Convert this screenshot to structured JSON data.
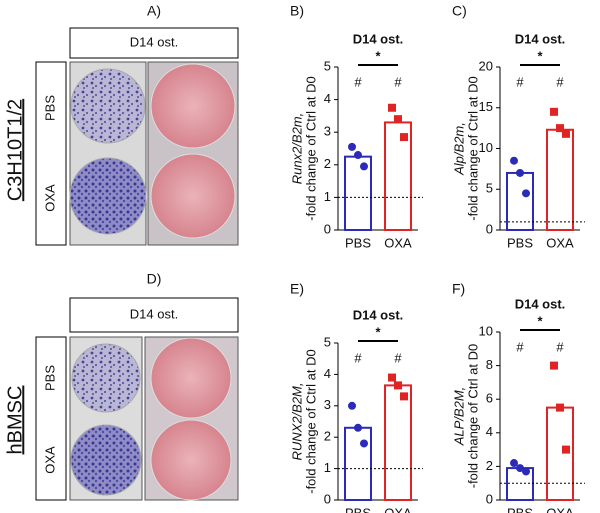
{
  "image_panels": [
    {
      "label": "A)",
      "header": "D14 ost.",
      "row_labels": [
        "PBS",
        "OXA"
      ],
      "side_label": "C3H10T1/2"
    },
    {
      "label": "D)",
      "header": "D14 ost.",
      "row_labels": [
        "PBS",
        "OXA"
      ],
      "side_label": "hBMSC"
    }
  ],
  "chart_data": [
    {
      "type": "bar",
      "label": "B)",
      "title": "D14 ost.",
      "ylabel": [
        "Runx2/B2m,",
        "-fold change of Ctrl at D0"
      ],
      "categories": [
        "PBS",
        "OXA"
      ],
      "values": [
        2.25,
        3.3
      ],
      "colors": [
        "#2b2bb8",
        "#e02424"
      ],
      "markers": [
        "circle",
        "square"
      ],
      "points": [
        [
          2.55,
          2.3,
          1.95
        ],
        [
          3.75,
          3.4,
          2.85
        ]
      ],
      "ref_line": 1,
      "bar_marks": [
        "#",
        "#"
      ],
      "significance": "*",
      "ylim": [
        0,
        5
      ],
      "yticks": [
        0,
        1,
        2,
        3,
        4,
        5
      ]
    },
    {
      "type": "bar",
      "label": "C)",
      "title": "D14 ost.",
      "ylabel": [
        "Alp/B2m,",
        "-fold change of Ctrl at D0"
      ],
      "categories": [
        "PBS",
        "OXA"
      ],
      "values": [
        7,
        12.3
      ],
      "colors": [
        "#2b2bb8",
        "#e02424"
      ],
      "markers": [
        "circle",
        "square"
      ],
      "points": [
        [
          8.5,
          7,
          4.5
        ],
        [
          14.5,
          12.5,
          11.8
        ]
      ],
      "ref_line": 1,
      "bar_marks": [
        "#",
        "#"
      ],
      "significance": "*",
      "ylim": [
        0,
        20
      ],
      "yticks": [
        0,
        5,
        10,
        15,
        20
      ]
    },
    {
      "type": "bar",
      "label": "E)",
      "title": "D14 ost.",
      "ylabel": [
        "RUNX2/B2M,",
        "-fold change of Ctrl at D0"
      ],
      "categories": [
        "PBS",
        "OXA"
      ],
      "values": [
        2.3,
        3.65
      ],
      "colors": [
        "#2b2bb8",
        "#e02424"
      ],
      "markers": [
        "circle",
        "square"
      ],
      "points": [
        [
          3.0,
          2.3,
          1.8
        ],
        [
          3.9,
          3.65,
          3.3
        ]
      ],
      "ref_line": 1,
      "bar_marks": [
        "#",
        "#"
      ],
      "significance": "*",
      "ylim": [
        0,
        5
      ],
      "yticks": [
        0,
        1,
        2,
        3,
        4,
        5
      ]
    },
    {
      "type": "bar",
      "label": "F)",
      "title": "D14 ost.",
      "ylabel": [
        "ALP/B2M,",
        "-fold change of Ctrl at D0"
      ],
      "categories": [
        "PBS",
        "OXA"
      ],
      "values": [
        1.9,
        5.5
      ],
      "colors": [
        "#2b2bb8",
        "#e02424"
      ],
      "markers": [
        "circle",
        "square"
      ],
      "points": [
        [
          2.2,
          1.9,
          1.7
        ],
        [
          8,
          5.5,
          3.0
        ]
      ],
      "ref_line": 1,
      "bar_marks": [
        "#",
        "#"
      ],
      "significance": "*",
      "ylim": [
        0,
        10
      ],
      "yticks": [
        0,
        2,
        4,
        6,
        8,
        10
      ]
    }
  ]
}
